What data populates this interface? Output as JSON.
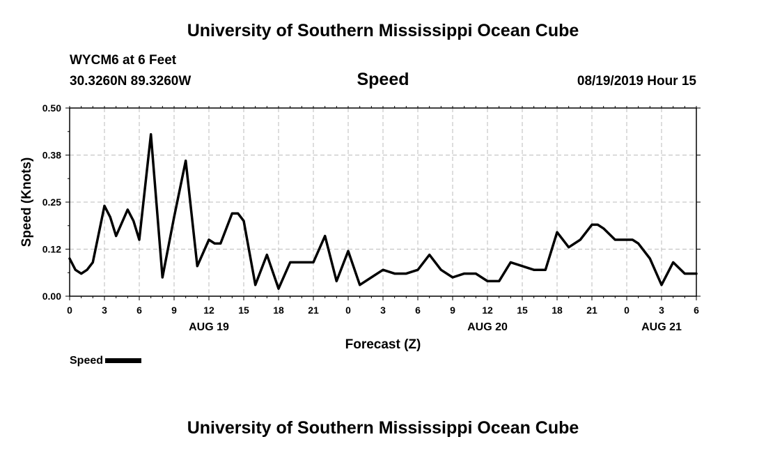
{
  "header": {
    "title_top": "University of Southern Mississippi Ocean Cube",
    "title_bottom": "University of Southern Mississippi Ocean Cube",
    "station": "WYCM6 at 6 Feet",
    "coords": "30.3260N 89.3260W",
    "variable": "Speed",
    "datetime": "08/19/2019 Hour 15"
  },
  "legend": {
    "label": "Speed"
  },
  "chart_data": {
    "type": "line",
    "title": "Speed",
    "xlabel": "Forecast (Z)",
    "ylabel": "Speed (Knots)",
    "ylim": [
      0,
      0.5
    ],
    "yticks": [
      "0.00",
      "0.12",
      "0.25",
      "0.38",
      "0.50"
    ],
    "ytick_values": [
      0,
      0.125,
      0.25,
      0.375,
      0.5
    ],
    "xlim": [
      0,
      54
    ],
    "xticks": [
      {
        "pos": 0,
        "label": "0"
      },
      {
        "pos": 3,
        "label": "3"
      },
      {
        "pos": 6,
        "label": "6"
      },
      {
        "pos": 9,
        "label": "9"
      },
      {
        "pos": 12,
        "label": "12"
      },
      {
        "pos": 15,
        "label": "15"
      },
      {
        "pos": 18,
        "label": "18"
      },
      {
        "pos": 21,
        "label": "21"
      },
      {
        "pos": 24,
        "label": "0"
      },
      {
        "pos": 27,
        "label": "3"
      },
      {
        "pos": 30,
        "label": "6"
      },
      {
        "pos": 33,
        "label": "9"
      },
      {
        "pos": 36,
        "label": "12"
      },
      {
        "pos": 39,
        "label": "15"
      },
      {
        "pos": 42,
        "label": "18"
      },
      {
        "pos": 45,
        "label": "21"
      },
      {
        "pos": 48,
        "label": "0"
      },
      {
        "pos": 51,
        "label": "3"
      },
      {
        "pos": 54,
        "label": "6"
      }
    ],
    "day_labels": [
      {
        "pos": 12,
        "label": "AUG 19"
      },
      {
        "pos": 36,
        "label": "AUG 20"
      },
      {
        "pos": 51,
        "label": "AUG 21"
      }
    ],
    "grid": true,
    "series": [
      {
        "name": "Speed",
        "x": [
          0,
          0.5,
          1,
          1.5,
          2,
          3,
          3.5,
          4,
          5,
          5.5,
          6,
          7,
          8,
          9,
          10,
          10.5,
          11,
          12,
          12.5,
          13,
          14,
          14.5,
          15,
          16,
          17,
          18,
          19,
          20,
          21,
          22,
          23,
          24,
          25,
          26,
          27,
          28,
          29,
          30,
          31,
          32,
          33,
          34,
          35,
          36,
          37,
          38,
          39,
          40,
          41,
          42,
          43,
          44,
          44.5,
          45,
          45.5,
          46,
          47,
          48,
          48.5,
          49,
          50,
          51,
          52,
          53,
          54
        ],
        "values": [
          0.1,
          0.07,
          0.06,
          0.07,
          0.09,
          0.24,
          0.21,
          0.16,
          0.23,
          0.2,
          0.15,
          0.43,
          0.05,
          0.21,
          0.36,
          0.22,
          0.08,
          0.15,
          0.14,
          0.14,
          0.22,
          0.22,
          0.2,
          0.03,
          0.11,
          0.02,
          0.09,
          0.09,
          0.09,
          0.16,
          0.04,
          0.12,
          0.03,
          0.05,
          0.07,
          0.06,
          0.06,
          0.07,
          0.11,
          0.07,
          0.05,
          0.06,
          0.06,
          0.04,
          0.04,
          0.09,
          0.08,
          0.07,
          0.07,
          0.17,
          0.13,
          0.15,
          0.17,
          0.19,
          0.19,
          0.18,
          0.15,
          0.15,
          0.15,
          0.14,
          0.1,
          0.03,
          0.09,
          0.06,
          0.06
        ]
      }
    ]
  }
}
